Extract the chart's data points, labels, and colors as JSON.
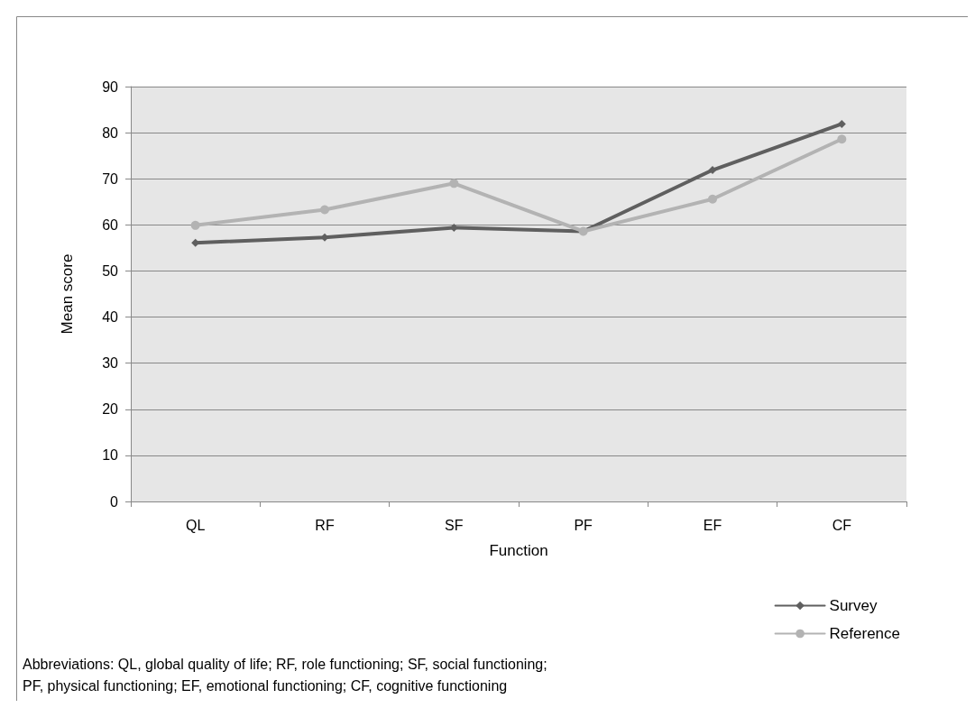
{
  "chart_data": {
    "type": "line",
    "xlabel": "Function",
    "ylabel": "Mean score",
    "categories": [
      "QL",
      "RF",
      "SF",
      "PF",
      "EF",
      "CF"
    ],
    "series": [
      {
        "name": "Survey",
        "color": "#5f5f5f",
        "marker": "diamond",
        "values": [
          56.1,
          57.3,
          59.4,
          58.6,
          71.9,
          81.9
        ]
      },
      {
        "name": "Reference",
        "color": "#b3b3b3",
        "marker": "circle",
        "values": [
          59.9,
          63.3,
          69,
          58.6,
          65.6,
          78.6
        ]
      }
    ],
    "ylim": [
      0,
      90
    ],
    "yticks": [
      0,
      10,
      20,
      30,
      40,
      50,
      60,
      70,
      80,
      90
    ],
    "grid": "y",
    "legend": "bottom right",
    "annotations": [
      "Abbreviations: QL, global quality of life; RF, role functioning; SF, social functioning;",
      "PF, physical functioning; EF, emotional functioning; CF, cognitive functioning"
    ]
  }
}
